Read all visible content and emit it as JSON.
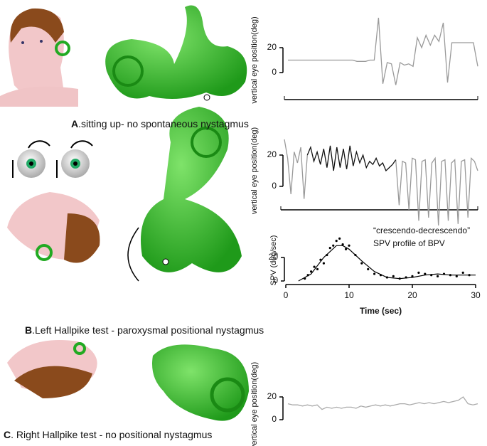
{
  "panels": [
    {
      "letter": "A",
      "caption": ".sitting up- no spontaneous nystagmus"
    },
    {
      "letter": "B",
      "caption": ".Left Hallpike test - paroxysmal positional nystagmus"
    },
    {
      "letter": "C",
      "caption": ". Right Hallpike test - no positional nystagmus"
    }
  ],
  "chart_data": [
    {
      "type": "line",
      "ylabel": "vertical eye position(deg)",
      "ylim": [
        -20,
        40
      ],
      "yticks": [
        0,
        20
      ],
      "series": [
        {
          "color": "#999999",
          "values": [
            10,
            10,
            10,
            10,
            10,
            10,
            10,
            10,
            10,
            10,
            10,
            10,
            10,
            10,
            10,
            10,
            9,
            9,
            9,
            10,
            10,
            44,
            -9,
            8,
            7,
            -10,
            8,
            6,
            7,
            5,
            28,
            20,
            30,
            22,
            30,
            25,
            40,
            -8,
            24,
            24,
            24,
            24,
            24,
            24,
            5
          ]
        }
      ]
    },
    {
      "type": "line",
      "ylabel": "vertical eye position(deg)",
      "ylim": [
        -15,
        35
      ],
      "yticks": [
        0,
        20
      ],
      "series": [
        {
          "color": "#999999",
          "values": [
            30,
            18,
            -5,
            22,
            15,
            25,
            -8,
            20,
            null,
            null,
            null,
            null,
            null,
            null,
            null,
            null,
            null,
            null,
            null,
            null,
            null,
            null,
            null,
            null,
            null,
            null,
            null,
            null,
            null,
            null,
            null,
            null,
            null,
            null,
            17,
            -12,
            16,
            15,
            -15,
            18,
            17,
            -22,
            16,
            17,
            -20,
            15,
            18,
            -25,
            16,
            17,
            -22,
            15,
            17,
            -24,
            16,
            17,
            -20,
            18,
            16,
            10
          ]
        },
        {
          "color": "#111111",
          "values": [
            null,
            null,
            null,
            null,
            null,
            null,
            null,
            20,
            25,
            16,
            22,
            14,
            24,
            12,
            26,
            10,
            25,
            12,
            24,
            11,
            26,
            13,
            22,
            15,
            20,
            12,
            16,
            14,
            18,
            13,
            15,
            10,
            12,
            14,
            17,
            null,
            null,
            null,
            null,
            null,
            null,
            null,
            null,
            null,
            null,
            null,
            null,
            null,
            null,
            null,
            null,
            null,
            null,
            null,
            null,
            null,
            null,
            null,
            null,
            null
          ]
        }
      ]
    },
    {
      "type": "scatter",
      "ylabel": "SPV (deg/sec)",
      "xlabel": "Time (sec)",
      "annotations": [
        "“crescendo-decrescendo”",
        "SPV profile of BPV"
      ],
      "xlim": [
        0,
        30
      ],
      "xticks": [
        0,
        10,
        20,
        30
      ],
      "ylim": [
        0,
        35
      ],
      "yticks": [
        0,
        20
      ],
      "x": [
        3,
        3.5,
        4,
        4.5,
        5,
        5.5,
        6,
        6.5,
        7,
        7.5,
        8,
        8.5,
        9,
        9.5,
        10,
        11,
        12,
        13,
        14,
        15,
        16,
        17,
        18,
        19,
        20,
        21,
        22,
        23,
        24,
        25,
        26,
        27,
        28,
        29
      ],
      "values": [
        2,
        5,
        8,
        12,
        10,
        18,
        15,
        22,
        28,
        30,
        34,
        36,
        31,
        27,
        30,
        22,
        15,
        10,
        6,
        5,
        3,
        4,
        2,
        3,
        4,
        7,
        6,
        5,
        4,
        6,
        5,
        4,
        7,
        5
      ],
      "fit_x": [
        2,
        4,
        6,
        8,
        9,
        10,
        12,
        14,
        16,
        18,
        20,
        22,
        24,
        26,
        28,
        30
      ],
      "fit_values": [
        0,
        6,
        20,
        30,
        30,
        27,
        17,
        8,
        3,
        2,
        3,
        5,
        6,
        5,
        5,
        5
      ]
    },
    {
      "type": "line",
      "ylabel": "vertical eye position(deg)",
      "ylim": [
        -5,
        30
      ],
      "yticks": [
        0,
        20
      ],
      "series": [
        {
          "color": "#aaaaaa",
          "values": [
            14,
            13,
            13,
            12,
            13,
            12,
            13,
            9,
            11,
            10,
            11,
            10,
            11,
            11,
            10,
            12,
            11,
            12,
            13,
            12,
            13,
            12,
            13,
            14,
            14,
            13,
            14,
            15,
            14,
            15,
            14,
            15,
            16,
            15,
            16,
            17,
            20,
            14,
            13,
            14
          ]
        }
      ]
    }
  ]
}
